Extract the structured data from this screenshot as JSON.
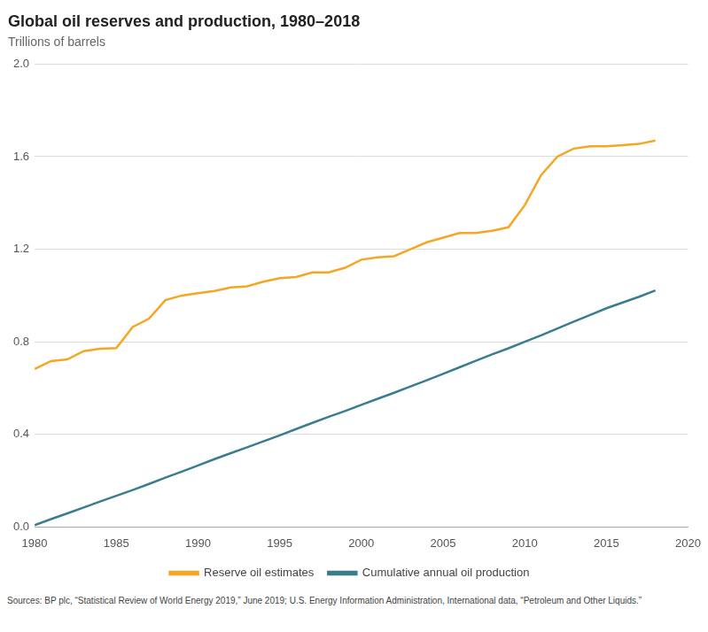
{
  "chart_data": {
    "type": "line",
    "title": "Global oil reserves and production, 1980–2018",
    "subtitle": "Trillions of barrels",
    "source": "Sources: BP plc, “Statistical Review of World Energy 2019,” June 2019; U.S. Energy Information Administration, International data, “Petroleum and Other Liquids.”",
    "x": [
      1980,
      1981,
      1982,
      1983,
      1984,
      1985,
      1986,
      1987,
      1988,
      1989,
      1990,
      1991,
      1992,
      1993,
      1994,
      1995,
      1996,
      1997,
      1998,
      1999,
      2000,
      2001,
      2002,
      2003,
      2004,
      2005,
      2006,
      2007,
      2008,
      2009,
      2010,
      2011,
      2012,
      2013,
      2014,
      2015,
      2016,
      2017,
      2018
    ],
    "series": [
      {
        "name": "Reserve oil estimates",
        "color": "#F5A623",
        "values": [
          0.683,
          0.717,
          0.724,
          0.76,
          0.77,
          0.773,
          0.864,
          0.9,
          0.98,
          1.0,
          1.01,
          1.02,
          1.035,
          1.04,
          1.06,
          1.075,
          1.08,
          1.1,
          1.1,
          1.12,
          1.155,
          1.165,
          1.17,
          1.2,
          1.23,
          1.25,
          1.27,
          1.27,
          1.28,
          1.295,
          1.39,
          1.52,
          1.6,
          1.635,
          1.645,
          1.645,
          1.65,
          1.655,
          1.67
        ]
      },
      {
        "name": "Cumulative annual oil production",
        "color": "#3A7D8C",
        "values": [
          0.008,
          0.034,
          0.059,
          0.084,
          0.11,
          0.135,
          0.16,
          0.186,
          0.213,
          0.239,
          0.266,
          0.293,
          0.319,
          0.344,
          0.37,
          0.396,
          0.423,
          0.45,
          0.476,
          0.501,
          0.528,
          0.554,
          0.58,
          0.607,
          0.634,
          0.662,
          0.69,
          0.718,
          0.746,
          0.772,
          0.8,
          0.828,
          0.858,
          0.887,
          0.916,
          0.945,
          0.97,
          0.995,
          1.022
        ]
      }
    ],
    "xlim": [
      1980,
      2020
    ],
    "xticks": [
      1980,
      1985,
      1990,
      1995,
      2000,
      2005,
      2010,
      2015,
      2020
    ],
    "ylim": [
      0,
      2.0
    ],
    "yticks": [
      {
        "value": 0,
        "label": "0.0"
      },
      0.4,
      0.8,
      1.2,
      1.6,
      {
        "value": 2.0,
        "label": "2.0"
      }
    ],
    "grid": true,
    "legend": "bottom"
  }
}
